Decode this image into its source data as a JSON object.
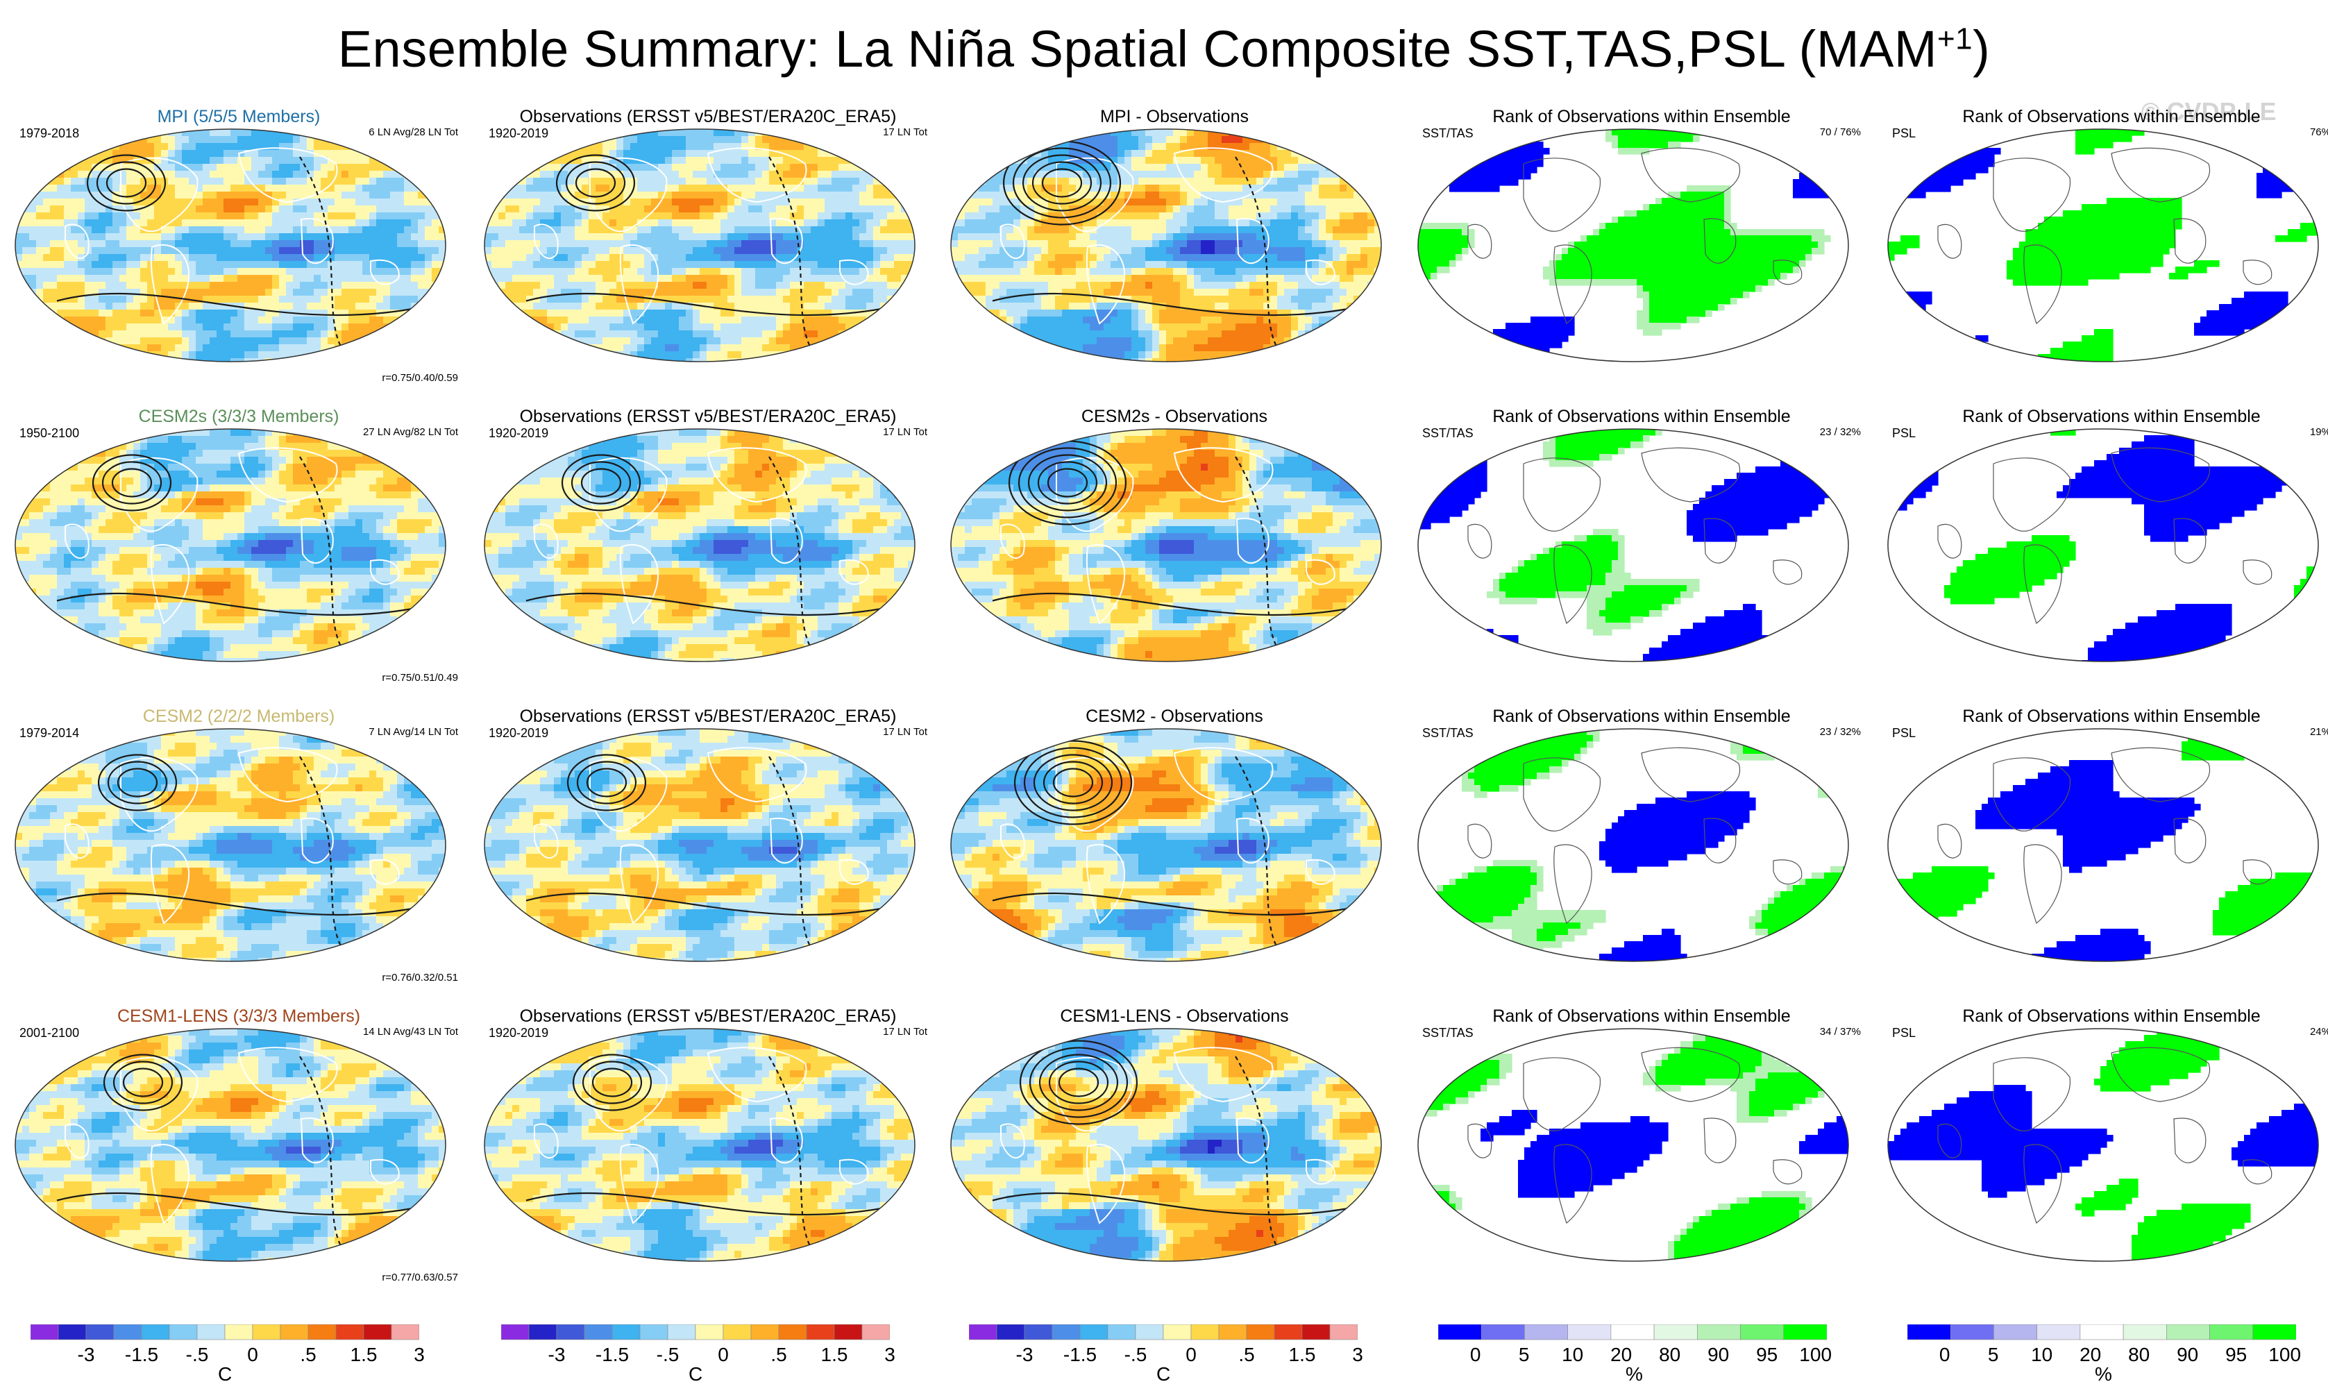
{
  "title_main": "Ensemble Summary: La Niña Spatial Composite SST,TAS,PSL (MAM",
  "title_sup": "+1",
  "title_end": ")",
  "watermark": "© CVDP-LE",
  "chart_data": {
    "type": "heatmap",
    "rows": [
      {
        "model_title": "MPI (5/5/5 Members)",
        "model_color": "#1f6fa6",
        "model_period": "1979-2018",
        "model_count": "6 LN Avg/28 LN Tot",
        "model_corr": "r=0.75/0.40/0.59",
        "obs_title": "Observations (ERSST v5/BEST/ERA20C_ERA5)",
        "obs_period": "1920-2019",
        "obs_count": "17 LN Tot",
        "diff_title": "MPI - Observations",
        "rank_sst_title": "Rank of Observations within Ensemble",
        "rank_sst_var": "SST/TAS",
        "rank_sst_pct": "70 / 76%",
        "rank_psl_title": "Rank of Observations within Ensemble",
        "rank_psl_var": "PSL",
        "rank_psl_pct": "76%"
      },
      {
        "model_title": "CESM2s (3/3/3 Members)",
        "model_color": "#5a8f5a",
        "model_period": "1950-2100",
        "model_count": "27 LN Avg/82 LN Tot",
        "model_corr": "r=0.75/0.51/0.49",
        "obs_title": "Observations (ERSST v5/BEST/ERA20C_ERA5)",
        "obs_period": "1920-2019",
        "obs_count": "17 LN Tot",
        "diff_title": "CESM2s - Observations",
        "rank_sst_title": "Rank of Observations within Ensemble",
        "rank_sst_var": "SST/TAS",
        "rank_sst_pct": "23 / 32%",
        "rank_psl_title": "Rank of Observations within Ensemble",
        "rank_psl_var": "PSL",
        "rank_psl_pct": "19%"
      },
      {
        "model_title": "CESM2 (2/2/2 Members)",
        "model_color": "#c8b870",
        "model_period": "1979-2014",
        "model_count": "7 LN Avg/14 LN Tot",
        "model_corr": "r=0.76/0.32/0.51",
        "obs_title": "Observations (ERSST v5/BEST/ERA20C_ERA5)",
        "obs_period": "1920-2019",
        "obs_count": "17 LN Tot",
        "diff_title": "CESM2 - Observations",
        "rank_sst_title": "Rank of Observations within Ensemble",
        "rank_sst_var": "SST/TAS",
        "rank_sst_pct": "23 / 32%",
        "rank_psl_title": "Rank of Observations within Ensemble",
        "rank_psl_var": "PSL",
        "rank_psl_pct": "21%"
      },
      {
        "model_title": "CESM1-LENS (3/3/3 Members)",
        "model_color": "#a0441c",
        "model_period": "2001-2100",
        "model_count": "14 LN Avg/43 LN Tot",
        "model_corr": "r=0.77/0.63/0.57",
        "obs_title": "Observations (ERSST v5/BEST/ERA20C_ERA5)",
        "obs_period": "1920-2019",
        "obs_count": "17 LN Tot",
        "diff_title": "CESM1-LENS - Observations",
        "rank_sst_title": "Rank of Observations within Ensemble",
        "rank_sst_var": "SST/TAS",
        "rank_sst_pct": "34 / 37%",
        "rank_psl_title": "Rank of Observations within Ensemble",
        "rank_psl_var": "PSL",
        "rank_psl_pct": "24%"
      }
    ],
    "temp_colorbar": {
      "unit": "C",
      "tick_labels": [
        "-3",
        "-1.5",
        "-.5",
        "0",
        ".5",
        "1.5",
        "3"
      ],
      "colors": [
        "#8a2be2",
        "#2323c8",
        "#3f59d9",
        "#4d8fe8",
        "#3fb2f0",
        "#85cdf5",
        "#c2e6f8",
        "#fff9b0",
        "#ffd84a",
        "#ffb02a",
        "#f57d12",
        "#e8401a",
        "#c81414",
        "#f5a6a6"
      ]
    },
    "rank_colorbar": {
      "unit": "%",
      "tick_labels": [
        "0",
        "5",
        "10",
        "20",
        "80",
        "90",
        "95",
        "100"
      ],
      "colors": [
        "#0000ff",
        "#6f6ff4",
        "#b5b5f0",
        "#e3e3f8",
        "#ffffff",
        "#e3f8e3",
        "#b5f0b5",
        "#6ff46f",
        "#00ff00"
      ]
    }
  }
}
